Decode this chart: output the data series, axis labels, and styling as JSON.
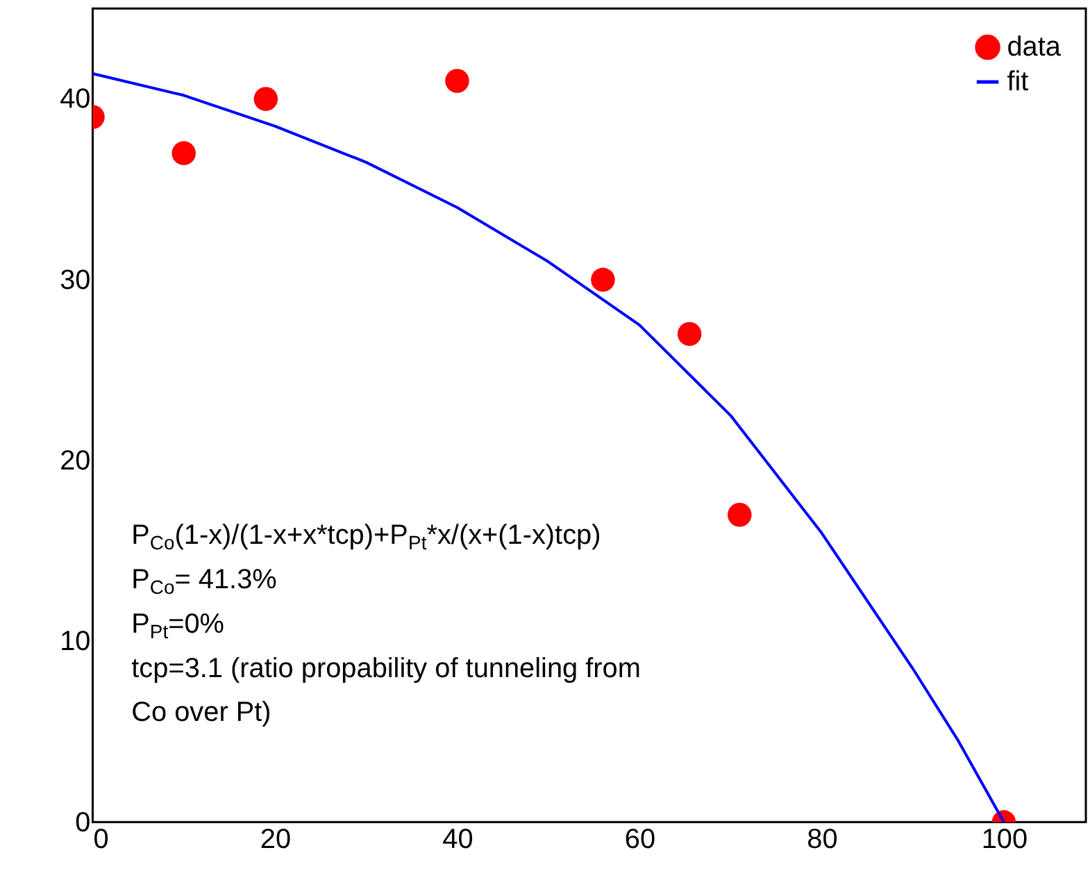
{
  "chart_data": {
    "type": "scatter",
    "series": [
      {
        "name": "data",
        "color": "#ff0000",
        "marker": "circle",
        "x": [
          0,
          10,
          19,
          40,
          56,
          65.5,
          71,
          100
        ],
        "values": [
          39,
          37,
          40,
          41,
          30,
          27,
          17,
          0
        ]
      },
      {
        "name": "fit",
        "type": "line",
        "color": "#0000ff",
        "line_style": "solid",
        "x": [
          0,
          10,
          20,
          30,
          40,
          50,
          60,
          70,
          80,
          90,
          95,
          100
        ],
        "values": [
          41.4,
          40.2,
          38.5,
          36.5,
          34,
          31,
          27.5,
          22.5,
          16,
          8.5,
          4.5,
          0
        ]
      }
    ],
    "xlim": [
      0,
      109
    ],
    "ylim": [
      0,
      45
    ],
    "xticks": [
      0,
      20,
      40,
      60,
      80,
      100
    ],
    "yticks": [
      0,
      10,
      20,
      30,
      40
    ],
    "grid": false,
    "legend": "top right",
    "annotations": [
      "P$_{Co}$(1-x)/(1-x+x*tcp)+P$_{Pt}$*x/(x+(1-x)tcp)",
      "P$_{Co}$= 41.3%",
      "P$_{Pt}$=0%",
      "tcp=3.1 (ratio propability of tunneling from",
      " Co over Pt)"
    ]
  }
}
